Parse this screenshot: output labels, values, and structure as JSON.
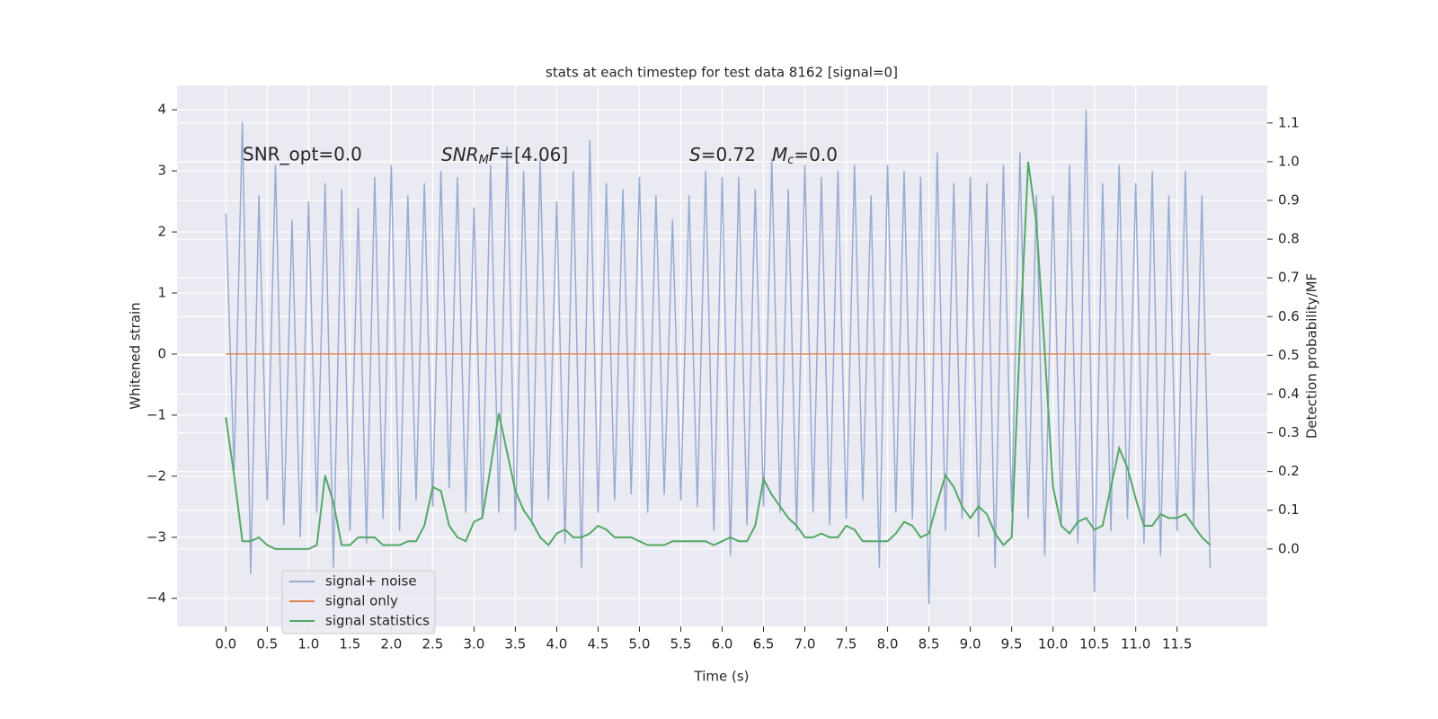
{
  "chart_data": {
    "type": "line",
    "title": "stats at each timestep for test data 8162 [signal=0]",
    "xlabel": "Time (s)",
    "ylabel": "Whitened strain",
    "y2label": "Detection probability/MF",
    "annotations": [
      [
        "SNR_opt=0.0"
      ],
      [
        "SNR",
        "M",
        "F",
        "=[4.06]"
      ],
      [
        "S",
        "=0.72"
      ],
      [
        "M",
        "c",
        "=0.0"
      ]
    ],
    "grid": true,
    "background": "#eaeaf2",
    "legend_position": "lower left",
    "xlim": [
      -0.59,
      12.59
    ],
    "ylim": [
      -4.46,
      4.4
    ],
    "y2lim": [
      -0.2,
      1.197
    ],
    "xticks": [
      {
        "value": 0,
        "label": "0.0"
      },
      0.5,
      {
        "value": 1,
        "label": "1.0"
      },
      1.5,
      {
        "value": 2,
        "label": "2.0"
      },
      2.5,
      {
        "value": 3,
        "label": "3.0"
      },
      3.5,
      {
        "value": 4,
        "label": "4.0"
      },
      4.5,
      {
        "value": 5,
        "label": "5.0"
      },
      5.5,
      {
        "value": 6,
        "label": "6.0"
      },
      6.5,
      {
        "value": 7,
        "label": "7.0"
      },
      7.5,
      {
        "value": 8,
        "label": "8.0"
      },
      8.5,
      {
        "value": 9,
        "label": "9.0"
      },
      9.5,
      {
        "value": 10,
        "label": "10.0"
      },
      10.5,
      {
        "value": 11,
        "label": "11.0"
      },
      11.5
    ],
    "yticks": [
      {
        "value": -4,
        "label": "−4"
      },
      {
        "value": -3,
        "label": "−3"
      },
      {
        "value": -2,
        "label": "−2"
      },
      {
        "value": -1,
        "label": "−1"
      },
      0,
      1,
      2,
      3,
      4
    ],
    "y2ticks": [
      {
        "value": 0,
        "label": "0.0"
      },
      0.1,
      0.2,
      0.3,
      0.4,
      0.5,
      0.6,
      0.7,
      0.8,
      0.9,
      {
        "value": 1,
        "label": "1.0"
      },
      1.1
    ],
    "x": [
      0.0,
      0.1,
      0.2,
      0.3,
      0.4,
      0.5,
      0.6,
      0.7,
      0.8,
      0.9,
      1.0,
      1.1,
      1.2,
      1.3,
      1.4,
      1.5,
      1.6,
      1.7,
      1.8,
      1.9,
      2.0,
      2.1,
      2.2,
      2.3,
      2.4,
      2.5,
      2.6,
      2.7,
      2.8,
      2.9,
      3.0,
      3.1,
      3.2,
      3.3,
      3.4,
      3.5,
      3.6,
      3.7,
      3.8,
      3.9,
      4.0,
      4.1,
      4.2,
      4.3,
      4.4,
      4.5,
      4.6,
      4.7,
      4.8,
      4.9,
      5.0,
      5.1,
      5.2,
      5.3,
      5.4,
      5.5,
      5.6,
      5.7,
      5.8,
      5.9,
      6.0,
      6.1,
      6.2,
      6.3,
      6.4,
      6.5,
      6.6,
      6.7,
      6.8,
      6.9,
      7.0,
      7.1,
      7.2,
      7.3,
      7.4,
      7.5,
      7.6,
      7.7,
      7.8,
      7.9,
      8.0,
      8.1,
      8.2,
      8.3,
      8.4,
      8.5,
      8.6,
      8.7,
      8.8,
      8.9,
      9.0,
      9.1,
      9.2,
      9.3,
      9.4,
      9.5,
      9.6,
      9.7,
      9.8,
      9.9,
      10.0,
      10.1,
      10.2,
      10.3,
      10.4,
      10.5,
      10.6,
      10.7,
      10.8,
      10.9,
      11.0,
      11.1,
      11.2,
      11.3,
      11.4,
      11.5,
      11.6,
      11.7,
      11.8,
      11.9
    ],
    "series": [
      {
        "name": "signal+ noise",
        "color": "#99abd0",
        "axis": "y",
        "values": [
          2.3,
          -1.9,
          3.8,
          -3.6,
          2.6,
          -2.4,
          3.1,
          -2.8,
          2.2,
          -3.0,
          2.5,
          -2.6,
          2.8,
          -3.5,
          2.7,
          -2.9,
          2.4,
          -3.1,
          2.9,
          -2.7,
          3.1,
          -2.9,
          2.6,
          -2.4,
          2.8,
          -2.5,
          3.0,
          -2.2,
          2.9,
          -2.6,
          2.4,
          -2.7,
          3.1,
          -2.6,
          3.4,
          -2.9,
          3.0,
          -2.8,
          3.2,
          -2.4,
          2.5,
          -3.1,
          3.0,
          -3.5,
          3.5,
          -2.6,
          2.8,
          -2.4,
          2.7,
          -2.3,
          2.9,
          -2.6,
          2.6,
          -2.3,
          2.2,
          -2.4,
          2.6,
          -2.5,
          3.0,
          -2.9,
          2.9,
          -3.3,
          2.9,
          -2.8,
          2.7,
          -2.5,
          3.2,
          -2.6,
          2.7,
          -2.9,
          3.1,
          -2.6,
          2.9,
          -2.8,
          3.0,
          -2.7,
          3.1,
          -2.4,
          2.6,
          -3.5,
          3.1,
          -2.6,
          3.0,
          -2.7,
          2.9,
          -4.1,
          3.3,
          -2.9,
          2.8,
          -2.7,
          2.9,
          -3.0,
          2.8,
          -3.5,
          3.1,
          -2.6,
          3.3,
          -2.7,
          2.6,
          -3.3,
          2.6,
          -2.8,
          3.1,
          -3.1,
          4.0,
          -3.9,
          2.8,
          -2.9,
          3.1,
          -2.7,
          2.8,
          -3.1,
          3.0,
          -3.3,
          2.6,
          -2.9,
          3.0,
          -2.8,
          2.6,
          -3.5
        ]
      },
      {
        "name": "signal only",
        "color": "#dd8452",
        "axis": "y",
        "values": [
          0,
          0,
          0,
          0,
          0,
          0,
          0,
          0,
          0,
          0,
          0,
          0,
          0,
          0,
          0,
          0,
          0,
          0,
          0,
          0,
          0,
          0,
          0,
          0,
          0,
          0,
          0,
          0,
          0,
          0,
          0,
          0,
          0,
          0,
          0,
          0,
          0,
          0,
          0,
          0,
          0,
          0,
          0,
          0,
          0,
          0,
          0,
          0,
          0,
          0,
          0,
          0,
          0,
          0,
          0,
          0,
          0,
          0,
          0,
          0,
          0,
          0,
          0,
          0,
          0,
          0,
          0,
          0,
          0,
          0,
          0,
          0,
          0,
          0,
          0,
          0,
          0,
          0,
          0,
          0,
          0,
          0,
          0,
          0,
          0,
          0,
          0,
          0,
          0,
          0,
          0,
          0,
          0,
          0,
          0,
          0,
          0,
          0,
          0,
          0,
          0,
          0,
          0,
          0,
          0,
          0,
          0,
          0,
          0,
          0,
          0,
          0,
          0,
          0,
          0,
          0,
          0,
          0,
          0,
          0
        ]
      },
      {
        "name": "signal statistics",
        "color": "#55a868",
        "axis": "y2",
        "values": [
          0.34,
          0.19,
          0.02,
          0.02,
          0.03,
          0.01,
          0.0,
          0.0,
          0.0,
          0.0,
          0.0,
          0.01,
          0.19,
          0.12,
          0.01,
          0.01,
          0.03,
          0.03,
          0.03,
          0.01,
          0.01,
          0.01,
          0.02,
          0.02,
          0.06,
          0.16,
          0.15,
          0.06,
          0.03,
          0.02,
          0.07,
          0.08,
          0.21,
          0.35,
          0.25,
          0.15,
          0.1,
          0.07,
          0.03,
          0.01,
          0.04,
          0.05,
          0.03,
          0.03,
          0.04,
          0.06,
          0.05,
          0.03,
          0.03,
          0.03,
          0.02,
          0.01,
          0.01,
          0.01,
          0.02,
          0.02,
          0.02,
          0.02,
          0.02,
          0.01,
          0.02,
          0.03,
          0.02,
          0.02,
          0.06,
          0.18,
          0.14,
          0.11,
          0.08,
          0.06,
          0.03,
          0.03,
          0.04,
          0.03,
          0.03,
          0.06,
          0.05,
          0.02,
          0.02,
          0.02,
          0.02,
          0.04,
          0.07,
          0.06,
          0.03,
          0.04,
          0.12,
          0.19,
          0.16,
          0.11,
          0.08,
          0.11,
          0.09,
          0.04,
          0.01,
          0.03,
          0.54,
          1.0,
          0.84,
          0.51,
          0.16,
          0.06,
          0.04,
          0.07,
          0.08,
          0.05,
          0.06,
          0.16,
          0.26,
          0.21,
          0.13,
          0.06,
          0.06,
          0.09,
          0.08,
          0.08,
          0.09,
          0.06,
          0.03,
          0.01
        ]
      }
    ]
  }
}
